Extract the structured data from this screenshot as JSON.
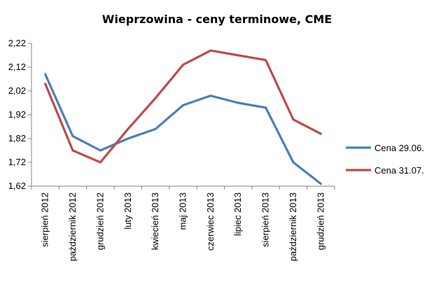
{
  "chart_data": {
    "type": "line",
    "title": "Wieprzowina - ceny terminowe, CME",
    "categories": [
      "sierpień 2012",
      "październik 2012",
      "grudzień 2012",
      "luty 2013",
      "kwiecień 2013",
      "maj 2013",
      "czerwiec 2013",
      "lipiec 2013",
      "sierpień 2013",
      "październik 2013",
      "grudzień 2013"
    ],
    "y_ticks": [
      "1,62",
      "1,72",
      "1,82",
      "1,92",
      "2,02",
      "2,12",
      "2,22"
    ],
    "ylim": [
      1.62,
      2.22
    ],
    "grid": false,
    "legend_position": "right",
    "series": [
      {
        "name": "Cena 29.06.",
        "color": "#4a7ebb",
        "values": [
          2.09,
          1.83,
          1.77,
          1.82,
          1.86,
          1.96,
          2.0,
          1.97,
          1.95,
          1.72,
          1.63
        ]
      },
      {
        "name": "Cena 31.07.",
        "color": "#be4b48",
        "values": [
          2.05,
          1.77,
          1.72,
          1.86,
          1.99,
          2.13,
          2.19,
          2.17,
          2.15,
          1.9,
          1.84
        ]
      }
    ]
  }
}
